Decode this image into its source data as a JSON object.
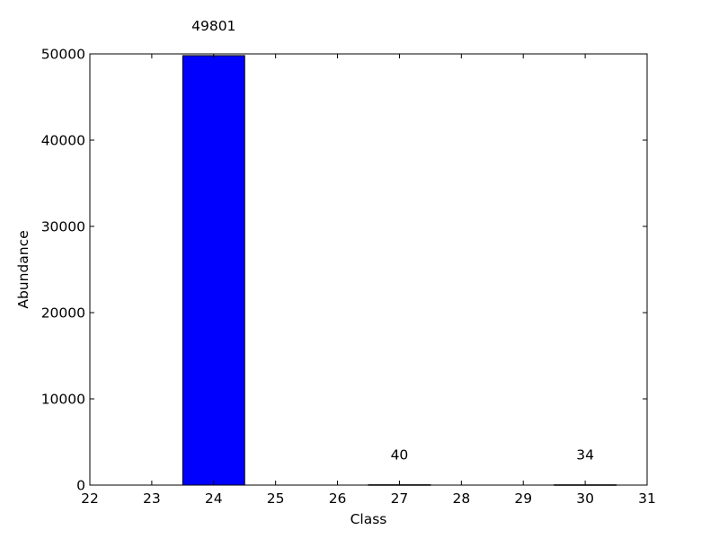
{
  "chart_data": {
    "type": "bar",
    "title": "",
    "xlabel": "Class",
    "ylabel": "Abundance",
    "xlim": [
      22,
      31
    ],
    "ylim": [
      0,
      50000
    ],
    "xticks": [
      22,
      23,
      24,
      25,
      26,
      27,
      28,
      29,
      30,
      31
    ],
    "yticks": [
      0,
      10000,
      20000,
      30000,
      40000,
      50000
    ],
    "grid": false,
    "bar_width": 1,
    "bars": [
      {
        "x": 24,
        "value": 49801,
        "label": "49801"
      },
      {
        "x": 27,
        "value": 40,
        "label": "40"
      },
      {
        "x": 30,
        "value": 34,
        "label": "34"
      }
    ],
    "colors": {
      "bar_fill": "#0000ff",
      "bar_edge": "#000000",
      "axes": "#000000",
      "background": "#ffffff"
    }
  }
}
